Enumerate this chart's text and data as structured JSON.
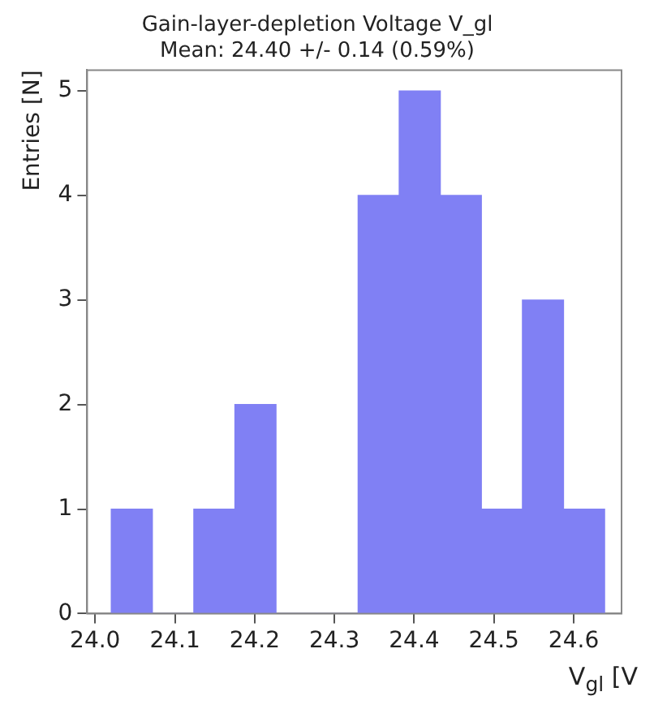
{
  "chart_data": {
    "type": "histogram",
    "title": "Gain-layer-depletion Voltage V_gl",
    "subtitle": "Mean: 24.40 +/- 0.14 (0.59%)",
    "xlabel": "V$_{gl}$ [V",
    "ylabel": "Entries [N]",
    "bins": [
      24.02,
      24.072,
      24.124,
      24.175,
      24.227,
      24.278,
      24.33,
      24.381,
      24.433,
      24.484,
      24.536,
      24.587,
      24.639
    ],
    "values": [
      1,
      0,
      1,
      2,
      0,
      0,
      4,
      5,
      4,
      1,
      3,
      1
    ],
    "color": "#8080f4",
    "xlim": [
      23.99,
      24.66
    ],
    "xticks": [
      {
        "value": 24.0,
        "label": "24.0"
      },
      24.1,
      24.2,
      24.3,
      24.4,
      24.5,
      24.6
    ],
    "ylim": [
      0,
      5.2
    ],
    "yticks": [
      0,
      1,
      2,
      3,
      4,
      5
    ],
    "grid": false,
    "legend": false
  }
}
